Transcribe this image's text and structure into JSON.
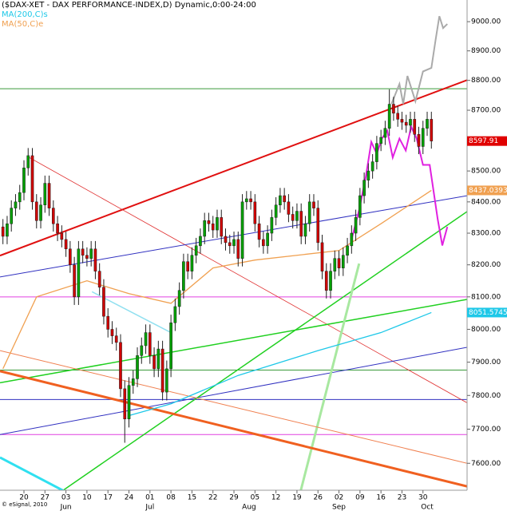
{
  "chart_data": {
    "type": "candlestick",
    "title": "($DAX-XET - DAX PERFORMANCE-INDEX,D) Dynamic,0:00-24:00",
    "footer": "© eSignal, 2010",
    "log_scale": true,
    "up_color": "#00a000",
    "down_color": "#d00000",
    "last_color": "#e00000",
    "xlim": [
      -0.7,
      110.5
    ],
    "ylim": [
      7522,
      9075
    ],
    "yticks": [
      {
        "value": 9000,
        "label": "9000.00"
      },
      {
        "value": 8900,
        "label": "8900.00"
      },
      {
        "value": 8800,
        "label": "8800.00"
      },
      {
        "value": 8700,
        "label": "8700.00"
      },
      {
        "value": 8500,
        "label": "8500.00"
      },
      {
        "value": 8400,
        "label": "8400.00"
      },
      {
        "value": 8300,
        "label": "8300.00"
      },
      {
        "value": 8200,
        "label": "8200.00"
      },
      {
        "value": 8100,
        "label": "8100.00"
      },
      {
        "value": 8000,
        "label": "8000.00"
      },
      {
        "value": 7900,
        "label": "7900.00"
      },
      {
        "value": 7800,
        "label": "7800.00"
      },
      {
        "value": 7700,
        "label": "7700.00"
      },
      {
        "value": 7600,
        "label": "7600.00"
      }
    ],
    "xticks": [
      {
        "value": 5,
        "label": "20"
      },
      {
        "value": 10,
        "label": "27"
      },
      {
        "value": 15,
        "label": "03"
      },
      {
        "value": 20,
        "label": "10"
      },
      {
        "value": 25,
        "label": "17"
      },
      {
        "value": 30,
        "label": "24"
      },
      {
        "value": 35,
        "label": "01"
      },
      {
        "value": 40,
        "label": "08"
      },
      {
        "value": 45,
        "label": "15"
      },
      {
        "value": 50,
        "label": "22"
      },
      {
        "value": 55,
        "label": "29"
      },
      {
        "value": 60,
        "label": "05"
      },
      {
        "value": 65,
        "label": "12"
      },
      {
        "value": 70,
        "label": "19"
      },
      {
        "value": 75,
        "label": "26"
      },
      {
        "value": 80,
        "label": "02"
      },
      {
        "value": 85,
        "label": "09"
      },
      {
        "value": 90,
        "label": "16"
      },
      {
        "value": 95,
        "label": "23"
      },
      {
        "value": 100,
        "label": "30"
      }
    ],
    "month_labels": [
      {
        "value": 15,
        "label": "Jun"
      },
      {
        "value": 35,
        "label": "Jul"
      },
      {
        "value": 58.6,
        "label": "Aug"
      },
      {
        "value": 80,
        "label": "Sep"
      },
      {
        "value": 101,
        "label": "Oct"
      }
    ],
    "x": [
      0,
      1,
      2,
      3,
      4,
      5,
      6,
      7,
      8,
      9,
      10,
      11,
      12,
      13,
      14,
      15,
      16,
      17,
      18,
      19,
      20,
      21,
      22,
      23,
      24,
      25,
      26,
      27,
      28,
      29,
      30,
      31,
      32,
      33,
      34,
      35,
      36,
      37,
      38,
      39,
      40,
      41,
      42,
      43,
      44,
      45,
      46,
      47,
      48,
      49,
      50,
      51,
      52,
      53,
      54,
      55,
      56,
      57,
      58,
      59,
      60,
      61,
      62,
      63,
      64,
      65,
      66,
      67,
      68,
      69,
      70,
      71,
      72,
      73,
      74,
      75,
      76,
      77,
      78,
      79,
      80,
      81,
      82,
      83,
      84,
      85,
      86,
      87,
      88,
      89,
      90,
      91,
      92,
      93,
      94,
      95,
      96,
      97,
      98,
      99,
      100,
      101,
      102
    ],
    "open": [
      8320,
      8290,
      8330,
      8380,
      8400,
      8430,
      8510,
      8550,
      8400,
      8340,
      8390,
      8460,
      8380,
      8330,
      8300,
      8280,
      8250,
      8200,
      8100,
      8250,
      8230,
      8220,
      8250,
      8180,
      8130,
      8040,
      8000,
      7980,
      7960,
      7820,
      7730,
      7830,
      7850,
      7920,
      7950,
      7990,
      7920,
      7880,
      7940,
      7810,
      7880,
      8020,
      8070,
      8120,
      8210,
      8180,
      8230,
      8260,
      8290,
      8340,
      8330,
      8310,
      8350,
      8290,
      8270,
      8260,
      8280,
      8220,
      8400,
      8410,
      8400,
      8330,
      8280,
      8260,
      8300,
      8350,
      8390,
      8420,
      8400,
      8360,
      8340,
      8370,
      8290,
      8330,
      8400,
      8380,
      8270,
      8180,
      8120,
      8180,
      8220,
      8190,
      8230,
      8260,
      8300,
      8350,
      8420,
      8470,
      8500,
      8530,
      8590,
      8610,
      8640,
      8720,
      8690,
      8670,
      8660,
      8650,
      8670,
      8620,
      8580,
      8640,
      8670
    ],
    "high": [
      8345,
      8355,
      8405,
      8425,
      8455,
      8535,
      8575,
      8575,
      8425,
      8415,
      8485,
      8485,
      8405,
      8355,
      8325,
      8305,
      8275,
      8225,
      8275,
      8275,
      8255,
      8275,
      8275,
      8205,
      8155,
      8065,
      8025,
      8005,
      7985,
      7845,
      7855,
      7875,
      7945,
      7975,
      8015,
      8015,
      7945,
      7965,
      7965,
      7905,
      8045,
      8095,
      8145,
      8235,
      8235,
      8255,
      8285,
      8315,
      8365,
      8365,
      8355,
      8375,
      8375,
      8315,
      8295,
      8305,
      8305,
      8425,
      8435,
      8435,
      8425,
      8355,
      8305,
      8325,
      8375,
      8415,
      8445,
      8445,
      8425,
      8385,
      8395,
      8395,
      8355,
      8425,
      8425,
      8405,
      8295,
      8205,
      8205,
      8245,
      8245,
      8255,
      8285,
      8325,
      8375,
      8445,
      8495,
      8525,
      8555,
      8615,
      8635,
      8665,
      8770,
      8745,
      8715,
      8695,
      8685,
      8695,
      8695,
      8645,
      8665,
      8695,
      8695
    ],
    "low": [
      8265,
      8265,
      8305,
      8355,
      8375,
      8405,
      8485,
      8375,
      8315,
      8315,
      8365,
      8355,
      8305,
      8275,
      8255,
      8225,
      8175,
      8075,
      8075,
      8205,
      8195,
      8195,
      8155,
      8105,
      8015,
      7975,
      7955,
      7935,
      7795,
      7660,
      7705,
      7805,
      7825,
      7895,
      7925,
      7895,
      7855,
      7855,
      7785,
      7785,
      7855,
      7995,
      8045,
      8095,
      8155,
      8155,
      8205,
      8235,
      8265,
      8305,
      8285,
      8285,
      8265,
      8245,
      8235,
      8235,
      8195,
      8195,
      8375,
      8375,
      8305,
      8255,
      8235,
      8235,
      8275,
      8325,
      8365,
      8375,
      8335,
      8315,
      8315,
      8265,
      8265,
      8305,
      8355,
      8245,
      8155,
      8095,
      8095,
      8155,
      8165,
      8165,
      8205,
      8235,
      8275,
      8325,
      8395,
      8445,
      8475,
      8505,
      8565,
      8585,
      8615,
      8665,
      8645,
      8635,
      8625,
      8625,
      8595,
      8555,
      8555,
      8615,
      8573
    ],
    "close": [
      8290,
      8330,
      8380,
      8400,
      8430,
      8510,
      8550,
      8400,
      8340,
      8390,
      8460,
      8380,
      8330,
      8300,
      8280,
      8250,
      8200,
      8100,
      8250,
      8230,
      8220,
      8250,
      8180,
      8130,
      8040,
      8000,
      7980,
      7960,
      7820,
      7730,
      7830,
      7850,
      7920,
      7950,
      7990,
      7920,
      7880,
      7940,
      7810,
      7880,
      8020,
      8070,
      8120,
      8210,
      8180,
      8230,
      8260,
      8290,
      8340,
      8330,
      8310,
      8350,
      8290,
      8270,
      8260,
      8280,
      8220,
      8400,
      8410,
      8400,
      8330,
      8280,
      8260,
      8300,
      8350,
      8390,
      8420,
      8400,
      8360,
      8340,
      8370,
      8290,
      8330,
      8400,
      8380,
      8270,
      8180,
      8120,
      8180,
      8220,
      8190,
      8230,
      8260,
      8300,
      8350,
      8420,
      8470,
      8500,
      8530,
      8590,
      8610,
      8640,
      8720,
      8690,
      8670,
      8660,
      8650,
      8670,
      8620,
      8580,
      8640,
      8670,
      8597.91
    ],
    "series": [
      {
        "name": "MA(200,C)s",
        "color": "#1ec8e8",
        "x": [
          30,
          40,
          56,
          75,
          90,
          102
        ],
        "values": [
          7740,
          7775,
          7860,
          7935,
          7990,
          8051.57452
        ]
      },
      {
        "name": "MA(50,C)e",
        "color": "#f0a050",
        "x": [
          0,
          8,
          20,
          30,
          40,
          50,
          60,
          70,
          80,
          90,
          102
        ],
        "values": [
          7880,
          8100,
          8150,
          8110,
          8080,
          8190,
          8215,
          8230,
          8245,
          8330,
          8437.03939
        ]
      }
    ],
    "projections": [
      {
        "color": "#aaaaaa",
        "x": [
          92.5,
          94.4,
          95.3,
          96.3,
          98.2,
          100,
          102,
          103,
          103.9,
          104.8,
          105.8
        ],
        "values": [
          8721,
          8788,
          8721,
          8815,
          8730,
          8830,
          8842,
          8937,
          9019,
          8978,
          8992
        ]
      },
      {
        "color": "#e020e0",
        "x": [
          83,
          84.8,
          86.4,
          87.7,
          89,
          90.2,
          91.5,
          92.8,
          94.4,
          95.9,
          97.2,
          98.5,
          100,
          101.6,
          103.5,
          104.6,
          105.8
        ],
        "values": [
          8280,
          8374,
          8482,
          8595,
          8556,
          8606,
          8632,
          8544,
          8606,
          8567,
          8645,
          8606,
          8520,
          8520,
          8345,
          8261,
          8320
        ]
      }
    ],
    "hlines": [
      {
        "color": "#3a9a3a",
        "value": 8772
      },
      {
        "color": "#e040e0",
        "value": 8100
      },
      {
        "color": "#3a9a3a",
        "value": 7876
      },
      {
        "color": "#3030c0",
        "value": 7788
      },
      {
        "color": "#e040e0",
        "value": 7684
      }
    ],
    "trendlines": [
      {
        "color": "#e01010",
        "width": 2,
        "x": [
          -0.7,
          110.5
        ],
        "values": [
          8229,
          8801
        ]
      },
      {
        "color": "#e03030",
        "width": 0.8,
        "x": [
          6,
          110.5
        ],
        "values": [
          8546,
          7778
        ]
      },
      {
        "color": "#3030c0",
        "width": 1,
        "x": [
          -0.7,
          110.5
        ],
        "values": [
          8162,
          8420
        ]
      },
      {
        "color": "#3030c0",
        "width": 1,
        "x": [
          -0.7,
          110.5
        ],
        "values": [
          7684,
          7945
        ]
      },
      {
        "color": "#20d020",
        "width": 1.5,
        "x": [
          -0.7,
          110.5
        ],
        "values": [
          7838,
          8092
        ]
      },
      {
        "color": "#20d020",
        "width": 1.5,
        "x": [
          6.9,
          110.5
        ],
        "values": [
          7460,
          8369
        ]
      },
      {
        "color": "#a8e8a0",
        "width": 3,
        "x": [
          69.6,
          84.8
        ],
        "values": [
          7460,
          8204
        ]
      },
      {
        "color": "#f06020",
        "width": 3,
        "x": [
          -0.7,
          110.5
        ],
        "values": [
          7873,
          7533
        ]
      },
      {
        "color": "#f08050",
        "width": 1,
        "x": [
          -0.7,
          110.5
        ],
        "values": [
          7935,
          7600
        ]
      },
      {
        "color": "#30e0f0",
        "width": 3,
        "x": [
          -0.7,
          24
        ],
        "values": [
          7617,
          7460
        ]
      },
      {
        "color": "#90e0f0",
        "width": 1.5,
        "x": [
          21.2,
          40
        ],
        "values": [
          8116,
          7990
        ]
      }
    ]
  }
}
